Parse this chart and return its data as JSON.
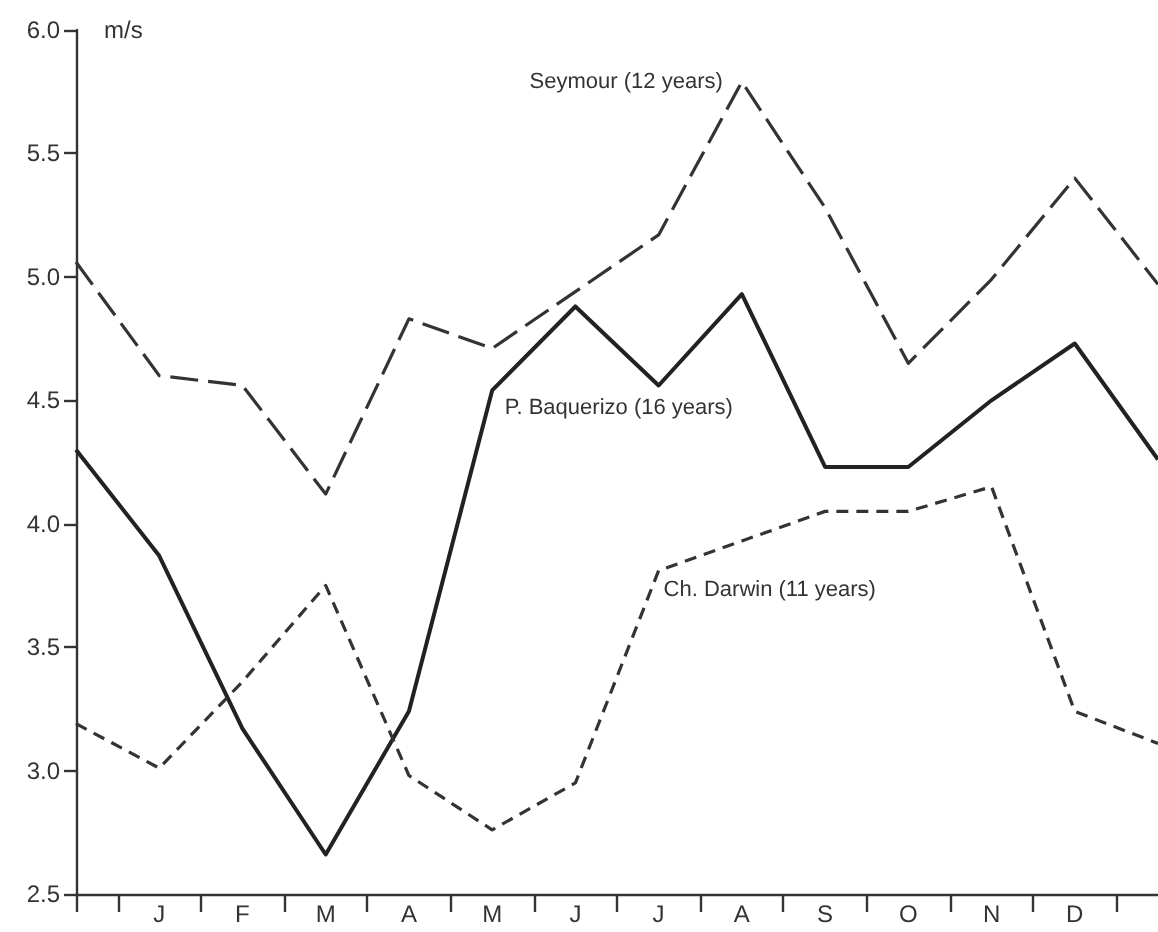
{
  "chart_data": {
    "type": "line",
    "ylabel": "m/s",
    "categories": [
      null,
      "J",
      "F",
      "M",
      "A",
      "M",
      "J",
      "J",
      "A",
      "S",
      "O",
      "N",
      "D",
      null
    ],
    "ylim": [
      2.5,
      6.0
    ],
    "yticks": [
      {
        "value": 2.5,
        "label": "2.5"
      },
      {
        "value": 3,
        "label": "3.0"
      },
      {
        "value": 3.5,
        "label": "3.5"
      },
      {
        "value": 4,
        "label": "4.0"
      },
      {
        "value": 4.5,
        "label": "4.5"
      },
      {
        "value": 5,
        "label": "5.0"
      },
      {
        "value": 5.5,
        "label": "5.5"
      },
      {
        "value": 6,
        "label": "6.0"
      }
    ],
    "series": [
      {
        "name": "Seymour (12 years)",
        "color": "#333333",
        "line_style": "dashed",
        "values": [
          5.06,
          4.6,
          4.56,
          4.12,
          4.83,
          4.71,
          4.94,
          5.17,
          5.79,
          5.28,
          4.65,
          4.99,
          5.4,
          4.97
        ]
      },
      {
        "name": "P. Baquerizo (16 years)",
        "color": "#222222",
        "line_style": "solid",
        "values": [
          4.3,
          3.87,
          3.17,
          2.66,
          3.24,
          4.54,
          4.88,
          4.56,
          4.93,
          4.23,
          4.23,
          4.5,
          4.73,
          4.26
        ]
      },
      {
        "name": "Ch. Darwin (11 years)",
        "color": "#333333",
        "line_style": "dashed",
        "values": [
          3.19,
          3.01,
          3.36,
          3.75,
          2.98,
          2.76,
          2.95,
          3.81,
          3.93,
          4.05,
          4.05,
          4.15,
          3.24,
          3.11
        ]
      }
    ]
  }
}
